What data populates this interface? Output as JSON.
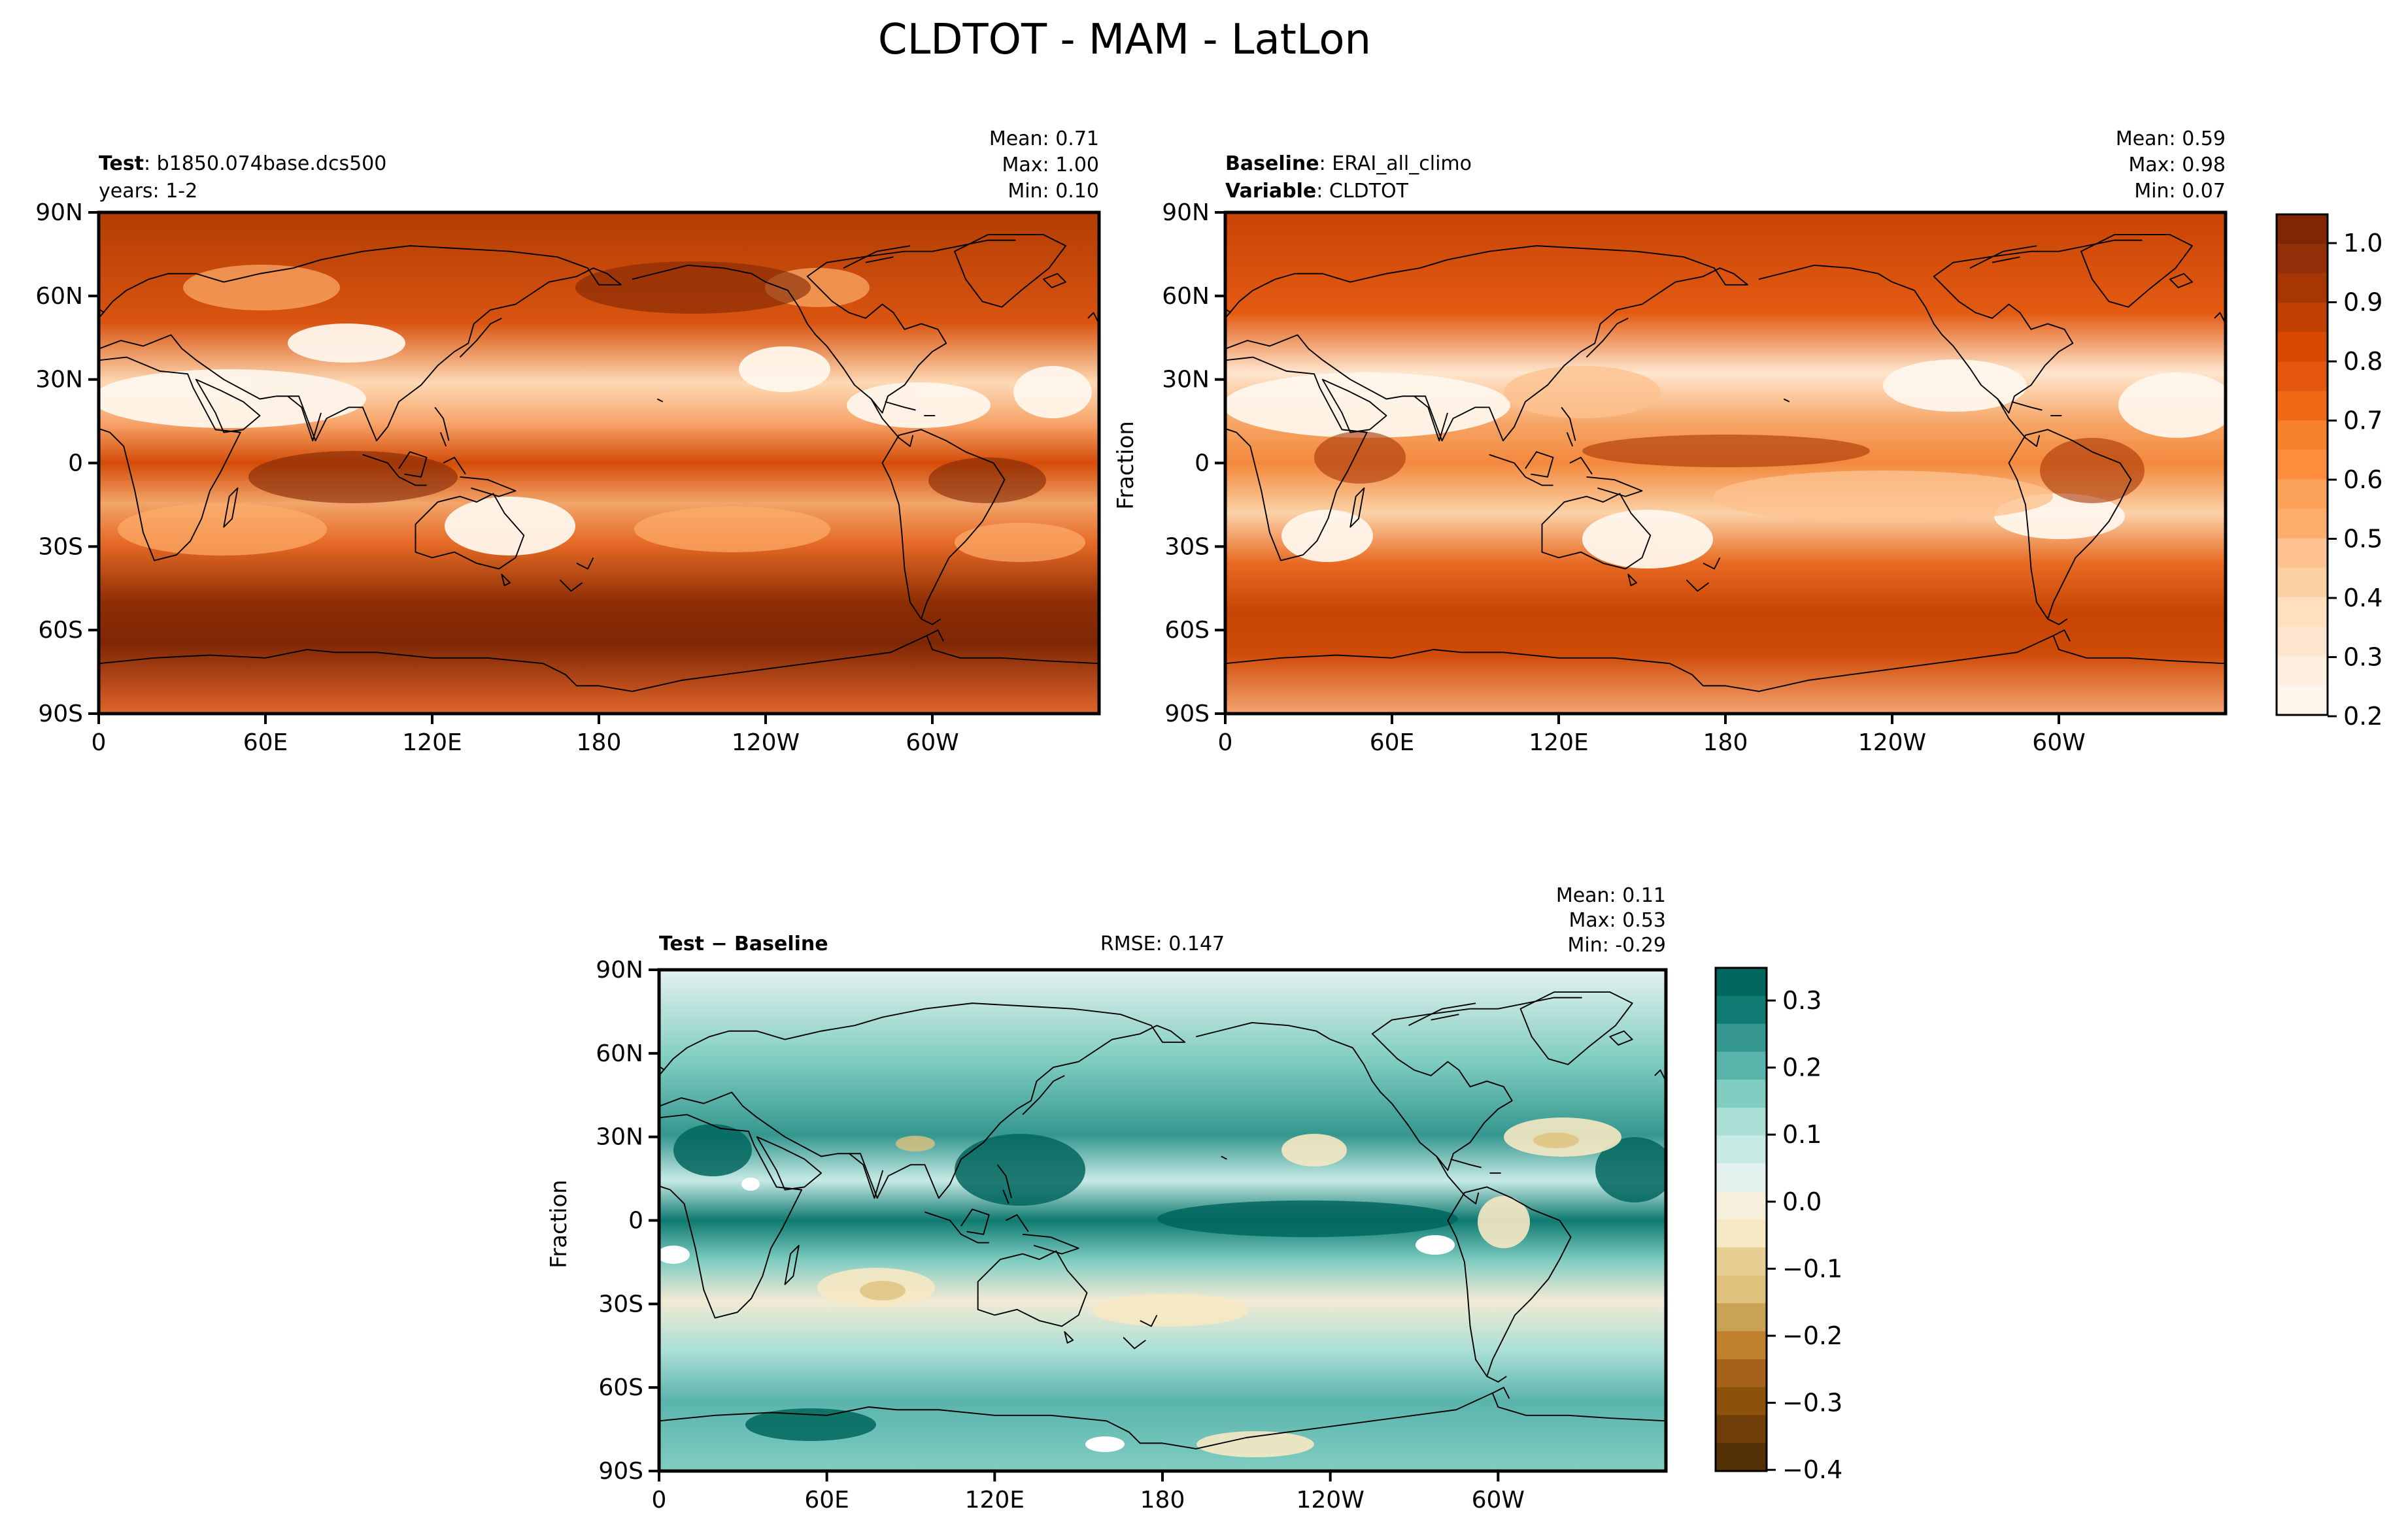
{
  "figure": {
    "title": "CLDTOT - MAM - LatLon"
  },
  "panels": [
    {
      "id": "test",
      "header_left": [
        {
          "bold": "Test",
          "rest": ": b1850.074base.dcs500"
        },
        {
          "bold": "",
          "rest": "years: 1-2"
        }
      ],
      "stats": [
        "Mean:  0.71",
        "Max:  1.00",
        "Min:  0.10"
      ],
      "ylabel": "",
      "palette": "oranges"
    },
    {
      "id": "baseline",
      "header_left": [
        {
          "bold": "Baseline",
          "rest": ": ERAI_all_climo"
        },
        {
          "bold": "Variable",
          "rest": ": CLDTOT"
        }
      ],
      "stats": [
        "Mean:  0.59",
        "Max:  0.98",
        "Min:  0.07"
      ],
      "ylabel": "Fraction",
      "palette": "oranges"
    },
    {
      "id": "diff",
      "header_left": [
        {
          "bold": "Test − Baseline",
          "rest": ""
        }
      ],
      "rmse": "RMSE: 0.147",
      "stats": [
        "Mean:  0.11",
        "Max:  0.53",
        "Min: -0.29"
      ],
      "ylabel": "Fraction",
      "palette": "brbg"
    }
  ],
  "axes": {
    "lat_ticks": [
      "90N",
      "60N",
      "30N",
      "0",
      "30S",
      "60S",
      "90S"
    ],
    "lon_ticks": [
      "0",
      "60E",
      "120E",
      "180",
      "120W",
      "60W"
    ]
  },
  "colorbars": {
    "main": {
      "ticks": [
        "1.0",
        "0.9",
        "0.8",
        "0.7",
        "0.6",
        "0.5",
        "0.4",
        "0.3",
        "0.2"
      ],
      "colors": [
        "#7f2704",
        "#93300a",
        "#a63603",
        "#c04003",
        "#d94801",
        "#e6550d",
        "#f16913",
        "#f8812c",
        "#fd8d3c",
        "#fda25b",
        "#fdae6b",
        "#fdc28f",
        "#fdd0a2",
        "#fee0bf",
        "#fee6ce",
        "#feeee0",
        "#fff5eb"
      ]
    },
    "diff": {
      "ticks": [
        "0.3",
        "0.2",
        "0.1",
        "0.0",
        "−0.1",
        "−0.2",
        "−0.3",
        "−0.4"
      ],
      "colors": [
        "#01665e",
        "#0f7a71",
        "#35978f",
        "#5ab4ac",
        "#80cdc1",
        "#aadfd6",
        "#c7eae5",
        "#e4f2ef",
        "#f6efdc",
        "#f6e8c3",
        "#e7cf94",
        "#dfc27d",
        "#c9a255",
        "#bf812d",
        "#a6611a",
        "#8c510a",
        "#6e3d08",
        "#543005"
      ]
    }
  }
}
